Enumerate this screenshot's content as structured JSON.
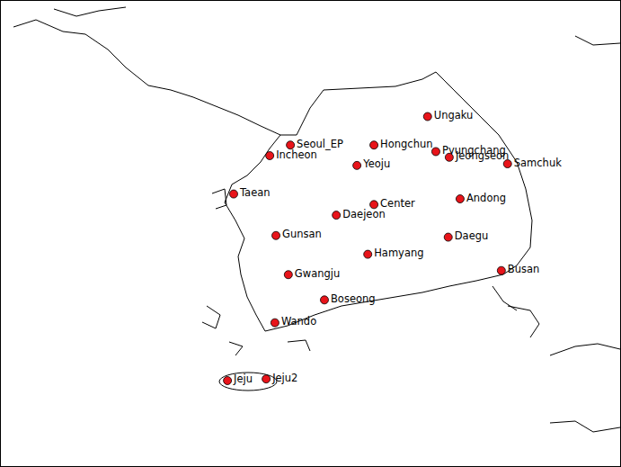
{
  "chart_data": {
    "type": "scatter",
    "labels": [
      "Ungaku",
      "Seoul_EP",
      "Hongchun",
      "Pyungchang",
      "Jeongseon",
      "Incheon",
      "Samchuk",
      "Yeoju",
      "Taean",
      "Center",
      "Andong",
      "Daejeon",
      "Gunsan",
      "Daegu",
      "Hamyang",
      "Busan",
      "Gwangju",
      "Boseong",
      "Wando",
      "Jeju",
      "Jeju2"
    ],
    "x": [
      129.19,
      126.53,
      128.15,
      129.35,
      129.61,
      126.13,
      130.74,
      127.82,
      125.43,
      128.15,
      129.82,
      127.42,
      126.25,
      129.59,
      128.03,
      130.62,
      126.49,
      127.19,
      126.23,
      125.31,
      126.06
    ],
    "values": [
      36.45,
      36.1,
      36.1,
      36.02,
      35.95,
      35.97,
      35.87,
      35.85,
      35.5,
      35.37,
      35.44,
      35.24,
      34.99,
      34.97,
      34.76,
      34.56,
      34.51,
      34.2,
      33.92,
      33.21,
      33.23
    ],
    "color": "#e8141a",
    "marker": "circle",
    "xlim": [
      120.9,
      132.94
    ],
    "ylim": [
      32.15,
      37.88
    ],
    "xticks": [
      125,
      130
    ],
    "yticks": [
      33,
      35,
      37
    ],
    "grid": true,
    "tick_labels": false
  }
}
